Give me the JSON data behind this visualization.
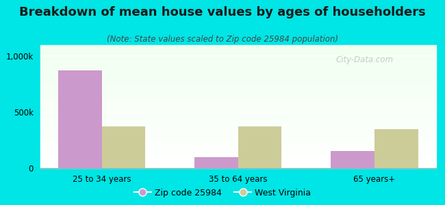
{
  "title": "Breakdown of mean house values by ages of householders",
  "subtitle": "(Note: State values scaled to Zip code 25984 population)",
  "categories": [
    "25 to 34 years",
    "35 to 64 years",
    "65 years+"
  ],
  "zip_values": [
    875000,
    100000,
    150000
  ],
  "state_values": [
    375000,
    375000,
    350000
  ],
  "zip_color": "#cc99cc",
  "state_color": "#cccc99",
  "bg_color": "#00e5e5",
  "ylim": [
    0,
    1100000
  ],
  "ytick_values": [
    0,
    500000,
    1000000
  ],
  "ytick_labels": [
    "0",
    "500k",
    "1,000k"
  ],
  "watermark": "City-Data.com",
  "legend_zip": "Zip code 25984",
  "legend_state": "West Virginia",
  "bar_width": 0.32,
  "title_fontsize": 13,
  "subtitle_fontsize": 8.5,
  "axis_fontsize": 8.5,
  "legend_fontsize": 9
}
